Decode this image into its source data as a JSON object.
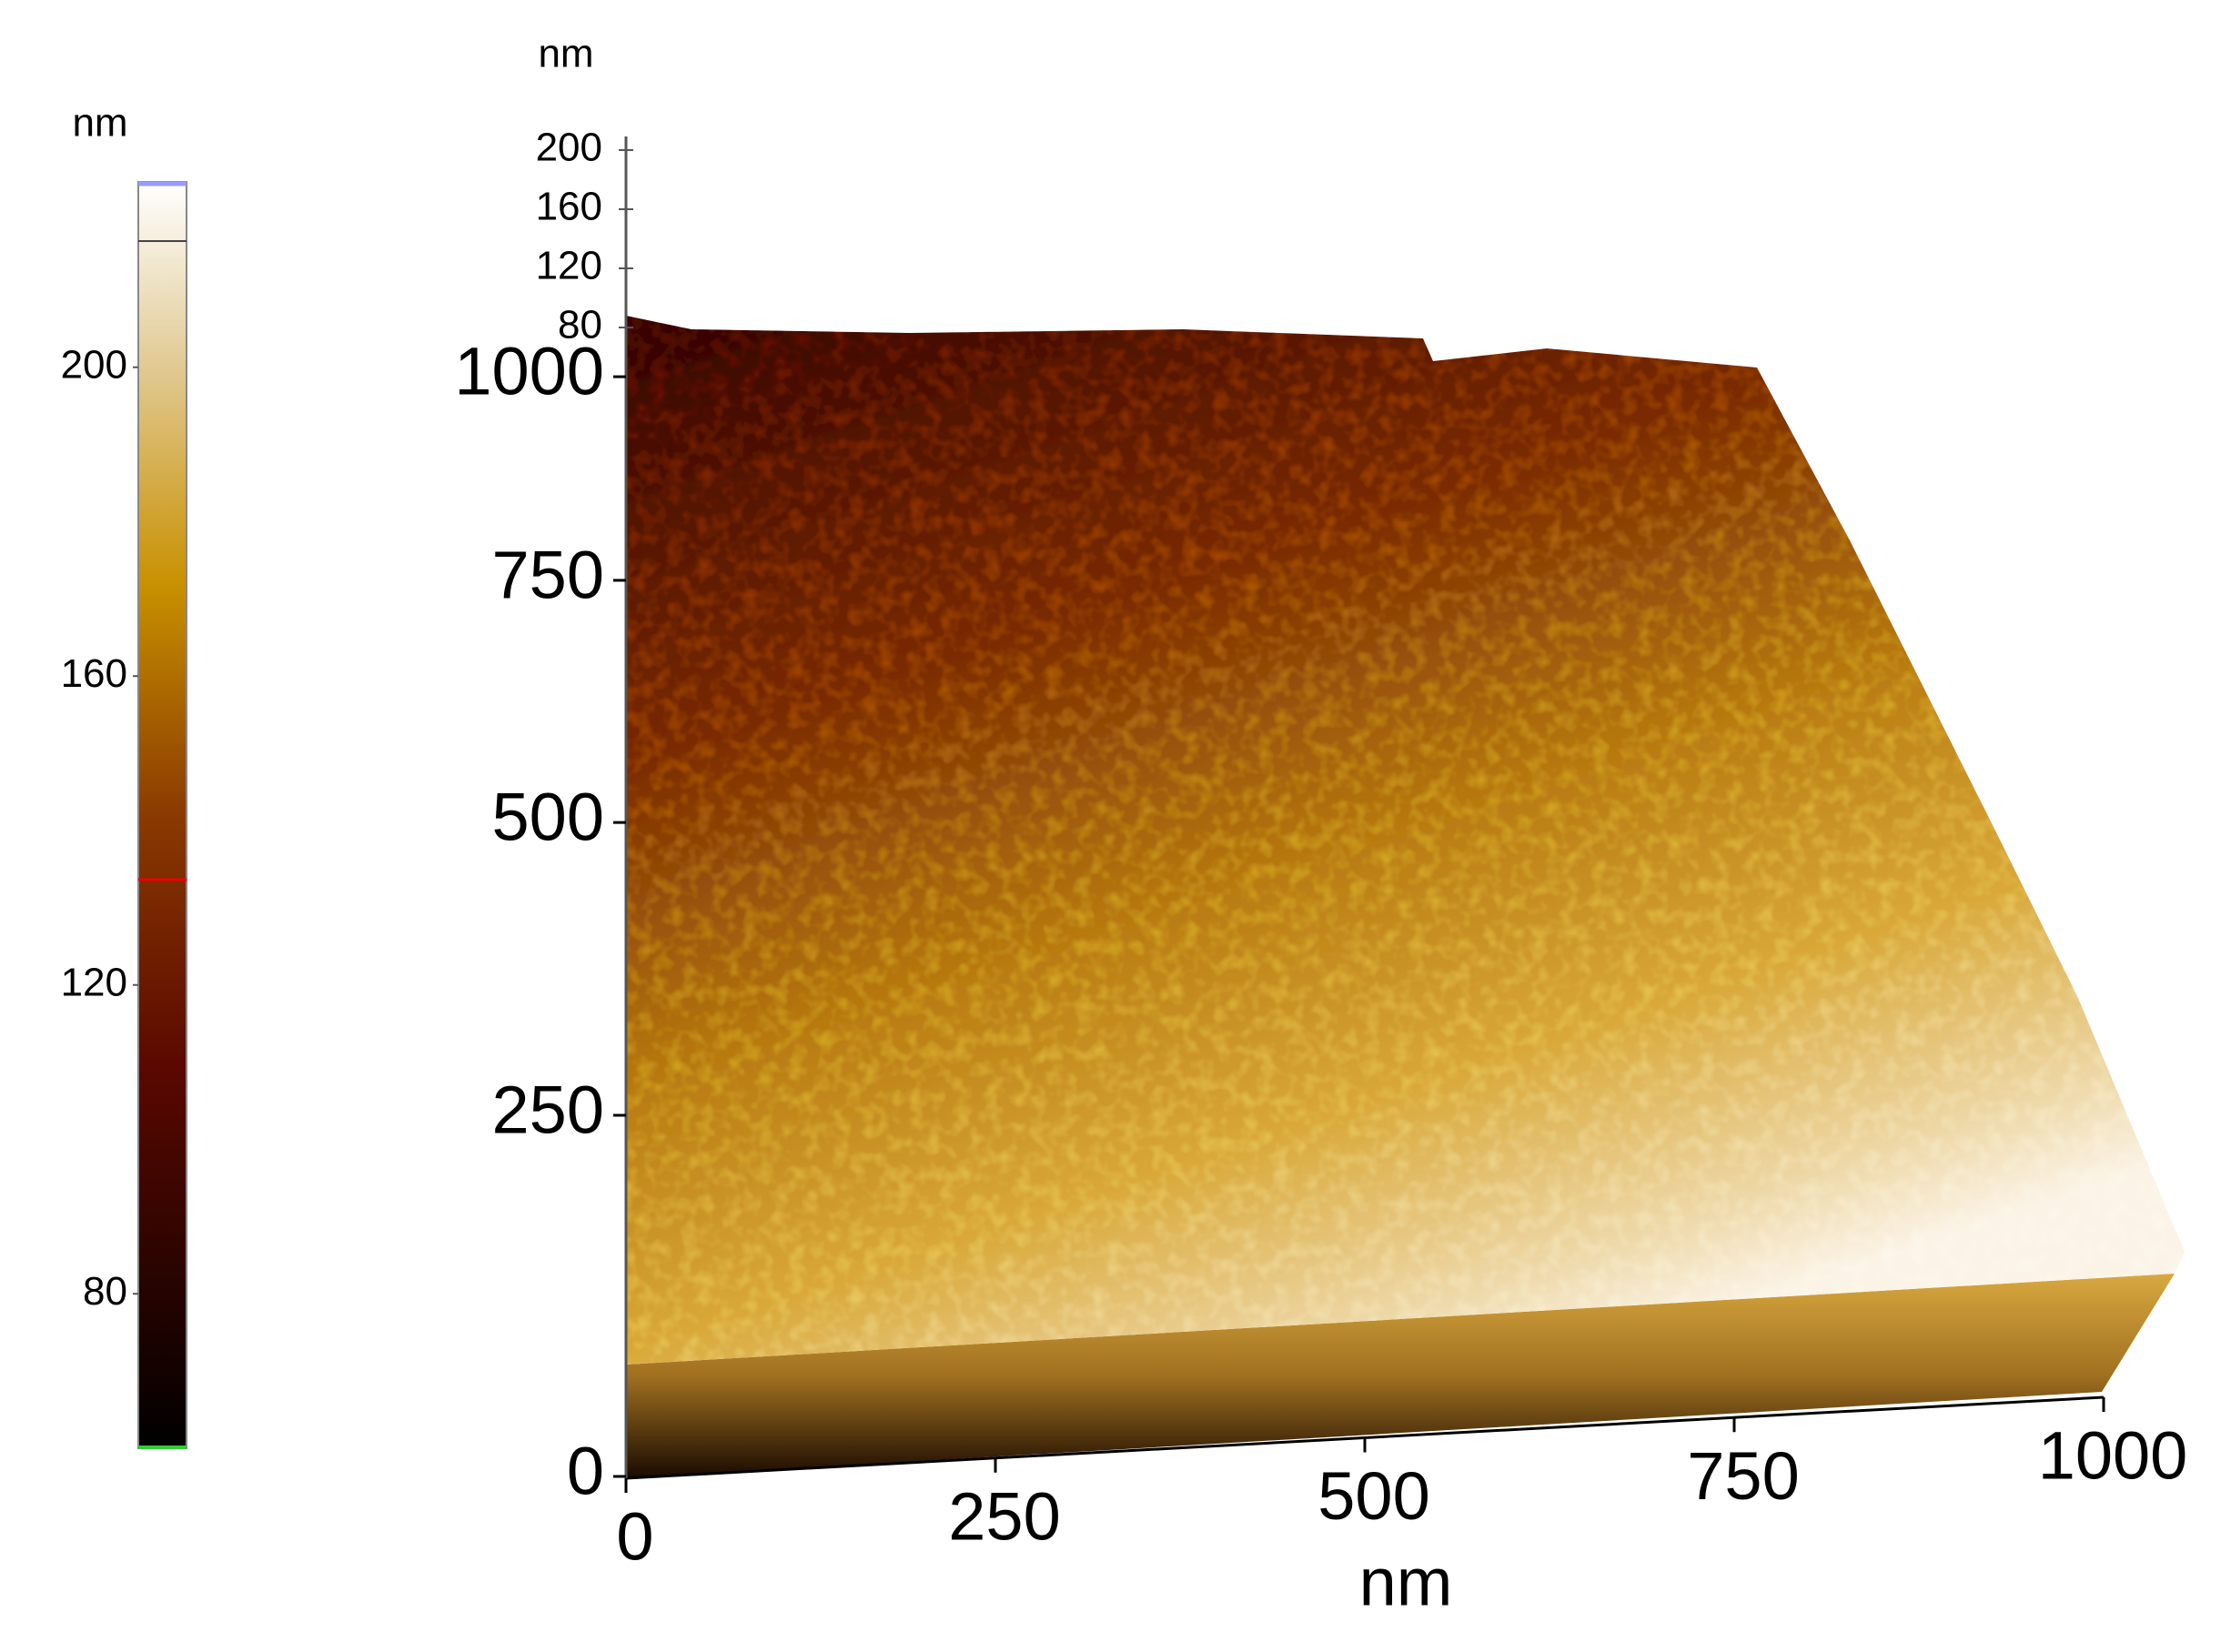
{
  "chart_data": {
    "type": "surface3d",
    "colorbar_label": "nm",
    "colorbar_ticks": [
      80,
      120,
      160,
      200
    ],
    "colorbar_lim": [
      60,
      224
    ],
    "zlabel": "nm",
    "zticks": [
      80,
      120,
      160,
      200
    ],
    "yticks": [
      0,
      250,
      500,
      750,
      1000
    ],
    "ylim": [
      0,
      1000
    ],
    "xlabel": "nm",
    "xticks": [
      0,
      250,
      500,
      750,
      1000
    ],
    "xlim": [
      0,
      1000
    ]
  }
}
